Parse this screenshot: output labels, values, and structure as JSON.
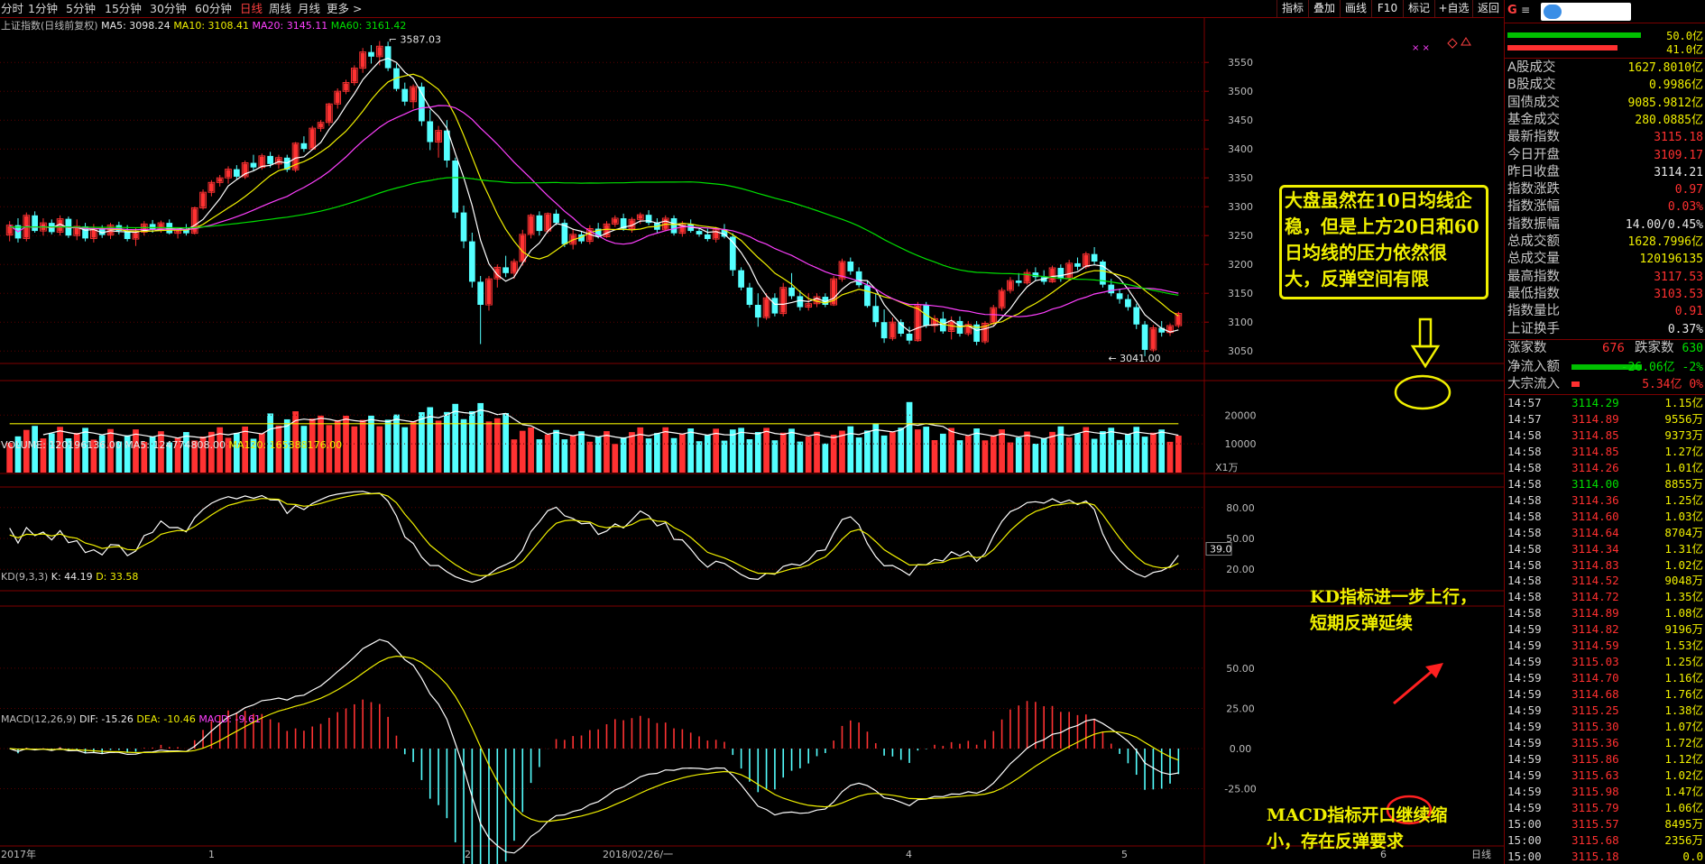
{
  "toolbar": {
    "periods": [
      "分时",
      "1分钟",
      "5分钟",
      "15分钟",
      "30分钟",
      "60分钟",
      "日线",
      "周线",
      "月线",
      "更多 >"
    ],
    "active_period": "日线",
    "tools": [
      "指标",
      "叠加",
      "画线",
      "F10",
      "标记",
      "+自选",
      "返回"
    ]
  },
  "main_chart": {
    "title": "上证指数(日线前复权)",
    "ma5": "MA5: 3098.24",
    "ma10": "MA10: 3108.41",
    "ma20": "MA20: 3145.11",
    "ma60": "MA60: 3161.42",
    "y_ticks": [
      "3550",
      "3500",
      "3450",
      "3400",
      "3350",
      "3300",
      "3250",
      "3200",
      "3150",
      "3100",
      "3050"
    ],
    "high_label": "3587.03",
    "low_label": "3041.00",
    "annotation": [
      "大盘虽然在10日均线企",
      "稳，但是上方20日和60",
      "日均线的压力依然很",
      "大，反弹空间有限"
    ]
  },
  "volume_chart": {
    "volume": "VOLUME: 120196136.00",
    "ma5": "MA5: 124774808.00",
    "ma120": "MA120: 165388176.00",
    "y_ticks": [
      "20000",
      "10000"
    ],
    "unit": "X1万"
  },
  "kd_chart": {
    "title": "KD(9,3,3)",
    "k": "K: 44.19",
    "d": "D: 33.58",
    "y_ticks": [
      "80.00",
      "50.00",
      "20.00"
    ],
    "value_box": "39.0",
    "annotation": [
      "KD指标进一步上行，",
      "短期反弹延续"
    ]
  },
  "macd_chart": {
    "title": "MACD(12,26,9)",
    "dif": "DIF: -15.26",
    "dea": "DEA: -10.46",
    "macd": "MACD: -9.61",
    "y_ticks": [
      "50.00",
      "25.00",
      "0.00",
      "-25.00"
    ],
    "annotation": [
      "MACD指标开口继续缩",
      "小，存在反弹要求"
    ]
  },
  "x_axis": {
    "labels": [
      "2017年",
      "1",
      "2",
      "2018/02/26/一",
      "4",
      "5",
      "6"
    ],
    "corner": "日线"
  },
  "colors": {
    "up": "#ff3232",
    "down": "#54ffff",
    "ma5": "#ffffff",
    "ma10": "#f0f000",
    "ma20": "#ff40ff",
    "ma60": "#00e000",
    "grid": "#800000"
  },
  "ohlc": [
    [
      3251,
      3275,
      3240,
      3268
    ],
    [
      3268,
      3280,
      3238,
      3245
    ],
    [
      3245,
      3290,
      3240,
      3285
    ],
    [
      3285,
      3292,
      3255,
      3258
    ],
    [
      3258,
      3280,
      3250,
      3272
    ],
    [
      3272,
      3278,
      3252,
      3256
    ],
    [
      3256,
      3285,
      3250,
      3279
    ],
    [
      3279,
      3283,
      3246,
      3250
    ],
    [
      3250,
      3278,
      3242,
      3266
    ],
    [
      3266,
      3272,
      3240,
      3245
    ],
    [
      3245,
      3270,
      3238,
      3262
    ],
    [
      3262,
      3268,
      3246,
      3251
    ],
    [
      3251,
      3272,
      3244,
      3268
    ],
    [
      3268,
      3274,
      3252,
      3258
    ],
    [
      3258,
      3268,
      3240,
      3244
    ],
    [
      3244,
      3263,
      3232,
      3256
    ],
    [
      3256,
      3275,
      3250,
      3270
    ],
    [
      3270,
      3277,
      3255,
      3260
    ],
    [
      3260,
      3276,
      3255,
      3272
    ],
    [
      3272,
      3278,
      3252,
      3254
    ],
    [
      3254,
      3262,
      3245,
      3260
    ],
    [
      3260,
      3270,
      3250,
      3254
    ],
    [
      3254,
      3300,
      3252,
      3298
    ],
    [
      3298,
      3330,
      3295,
      3325
    ],
    [
      3325,
      3346,
      3318,
      3342
    ],
    [
      3342,
      3355,
      3335,
      3350
    ],
    [
      3350,
      3370,
      3340,
      3365
    ],
    [
      3365,
      3372,
      3348,
      3352
    ],
    [
      3352,
      3380,
      3348,
      3376
    ],
    [
      3376,
      3390,
      3362,
      3368
    ],
    [
      3368,
      3392,
      3364,
      3388
    ],
    [
      3388,
      3395,
      3368,
      3374
    ],
    [
      3374,
      3390,
      3366,
      3385
    ],
    [
      3385,
      3390,
      3360,
      3364
    ],
    [
      3364,
      3412,
      3360,
      3410
    ],
    [
      3410,
      3422,
      3395,
      3400
    ],
    [
      3400,
      3440,
      3398,
      3436
    ],
    [
      3436,
      3450,
      3430,
      3446
    ],
    [
      3446,
      3480,
      3440,
      3478
    ],
    [
      3478,
      3505,
      3470,
      3500
    ],
    [
      3500,
      3520,
      3495,
      3515
    ],
    [
      3515,
      3545,
      3510,
      3540
    ],
    [
      3540,
      3575,
      3532,
      3568
    ],
    [
      3568,
      3580,
      3548,
      3560
    ],
    [
      3560,
      3587,
      3545,
      3578
    ],
    [
      3578,
      3586,
      3535,
      3540
    ],
    [
      3540,
      3548,
      3500,
      3504
    ],
    [
      3504,
      3515,
      3475,
      3482
    ],
    [
      3482,
      3512,
      3470,
      3508
    ],
    [
      3508,
      3515,
      3440,
      3448
    ],
    [
      3448,
      3468,
      3398,
      3412
    ],
    [
      3412,
      3440,
      3385,
      3432
    ],
    [
      3432,
      3450,
      3368,
      3380
    ],
    [
      3380,
      3385,
      3280,
      3290
    ],
    [
      3290,
      3302,
      3228,
      3240
    ],
    [
      3240,
      3255,
      3160,
      3170
    ],
    [
      3170,
      3180,
      3062,
      3130
    ],
    [
      3130,
      3180,
      3120,
      3175
    ],
    [
      3175,
      3200,
      3160,
      3195
    ],
    [
      3195,
      3215,
      3178,
      3185
    ],
    [
      3185,
      3210,
      3175,
      3205
    ],
    [
      3205,
      3260,
      3198,
      3252
    ],
    [
      3252,
      3288,
      3245,
      3285
    ],
    [
      3285,
      3292,
      3250,
      3258
    ],
    [
      3258,
      3290,
      3254,
      3288
    ],
    [
      3288,
      3295,
      3268,
      3272
    ],
    [
      3272,
      3278,
      3230,
      3235
    ],
    [
      3235,
      3262,
      3226,
      3252
    ],
    [
      3252,
      3258,
      3236,
      3240
    ],
    [
      3240,
      3268,
      3235,
      3262
    ],
    [
      3262,
      3272,
      3245,
      3248
    ],
    [
      3248,
      3275,
      3246,
      3270
    ],
    [
      3270,
      3285,
      3265,
      3280
    ],
    [
      3280,
      3288,
      3258,
      3262
    ],
    [
      3262,
      3282,
      3255,
      3278
    ],
    [
      3278,
      3290,
      3270,
      3286
    ],
    [
      3286,
      3294,
      3268,
      3272
    ],
    [
      3272,
      3280,
      3255,
      3260
    ],
    [
      3260,
      3285,
      3258,
      3280
    ],
    [
      3280,
      3285,
      3250,
      3254
    ],
    [
      3254,
      3275,
      3248,
      3270
    ],
    [
      3270,
      3278,
      3255,
      3258
    ],
    [
      3258,
      3262,
      3248,
      3252
    ],
    [
      3252,
      3262,
      3240,
      3244
    ],
    [
      3244,
      3265,
      3238,
      3260
    ],
    [
      3260,
      3270,
      3245,
      3248
    ],
    [
      3248,
      3254,
      3180,
      3190
    ],
    [
      3190,
      3195,
      3155,
      3160
    ],
    [
      3160,
      3168,
      3125,
      3130
    ],
    [
      3130,
      3150,
      3092,
      3108
    ],
    [
      3108,
      3150,
      3104,
      3142
    ],
    [
      3142,
      3150,
      3110,
      3115
    ],
    [
      3115,
      3168,
      3110,
      3160
    ],
    [
      3160,
      3185,
      3140,
      3145
    ],
    [
      3145,
      3155,
      3120,
      3126
    ],
    [
      3126,
      3150,
      3120,
      3132
    ],
    [
      3132,
      3150,
      3126,
      3144
    ],
    [
      3144,
      3150,
      3126,
      3130
    ],
    [
      3130,
      3180,
      3128,
      3175
    ],
    [
      3175,
      3210,
      3170,
      3205
    ],
    [
      3205,
      3212,
      3182,
      3188
    ],
    [
      3188,
      3195,
      3160,
      3164
    ],
    [
      3164,
      3172,
      3125,
      3128
    ],
    [
      3128,
      3150,
      3092,
      3100
    ],
    [
      3100,
      3122,
      3064,
      3072
    ],
    [
      3072,
      3108,
      3068,
      3100
    ],
    [
      3100,
      3105,
      3075,
      3080
    ],
    [
      3080,
      3092,
      3062,
      3068
    ],
    [
      3068,
      3135,
      3066,
      3130
    ],
    [
      3130,
      3135,
      3090,
      3094
    ],
    [
      3094,
      3112,
      3082,
      3106
    ],
    [
      3106,
      3118,
      3080,
      3084
    ],
    [
      3084,
      3110,
      3070,
      3102
    ],
    [
      3102,
      3110,
      3075,
      3080
    ],
    [
      3080,
      3102,
      3076,
      3096
    ],
    [
      3096,
      3102,
      3060,
      3066
    ],
    [
      3066,
      3102,
      3062,
      3098
    ],
    [
      3098,
      3130,
      3094,
      3125
    ],
    [
      3125,
      3160,
      3120,
      3155
    ],
    [
      3155,
      3178,
      3150,
      3172
    ],
    [
      3172,
      3185,
      3162,
      3168
    ],
    [
      3168,
      3192,
      3165,
      3186
    ],
    [
      3186,
      3195,
      3172,
      3178
    ],
    [
      3178,
      3190,
      3165,
      3170
    ],
    [
      3170,
      3198,
      3168,
      3194
    ],
    [
      3194,
      3200,
      3170,
      3175
    ],
    [
      3175,
      3208,
      3172,
      3202
    ],
    [
      3202,
      3212,
      3190,
      3196
    ],
    [
      3196,
      3222,
      3192,
      3218
    ],
    [
      3218,
      3230,
      3200,
      3205
    ],
    [
      3205,
      3208,
      3160,
      3165
    ],
    [
      3165,
      3175,
      3145,
      3150
    ],
    [
      3150,
      3158,
      3132,
      3140
    ],
    [
      3140,
      3148,
      3120,
      3126
    ],
    [
      3126,
      3132,
      3088,
      3096
    ],
    [
      3096,
      3102,
      3041,
      3052
    ],
    [
      3052,
      3095,
      3048,
      3090
    ],
    [
      3090,
      3102,
      3075,
      3082
    ],
    [
      3082,
      3098,
      3076,
      3094
    ],
    [
      3094,
      3118,
      3090,
      3115
    ]
  ]
}
